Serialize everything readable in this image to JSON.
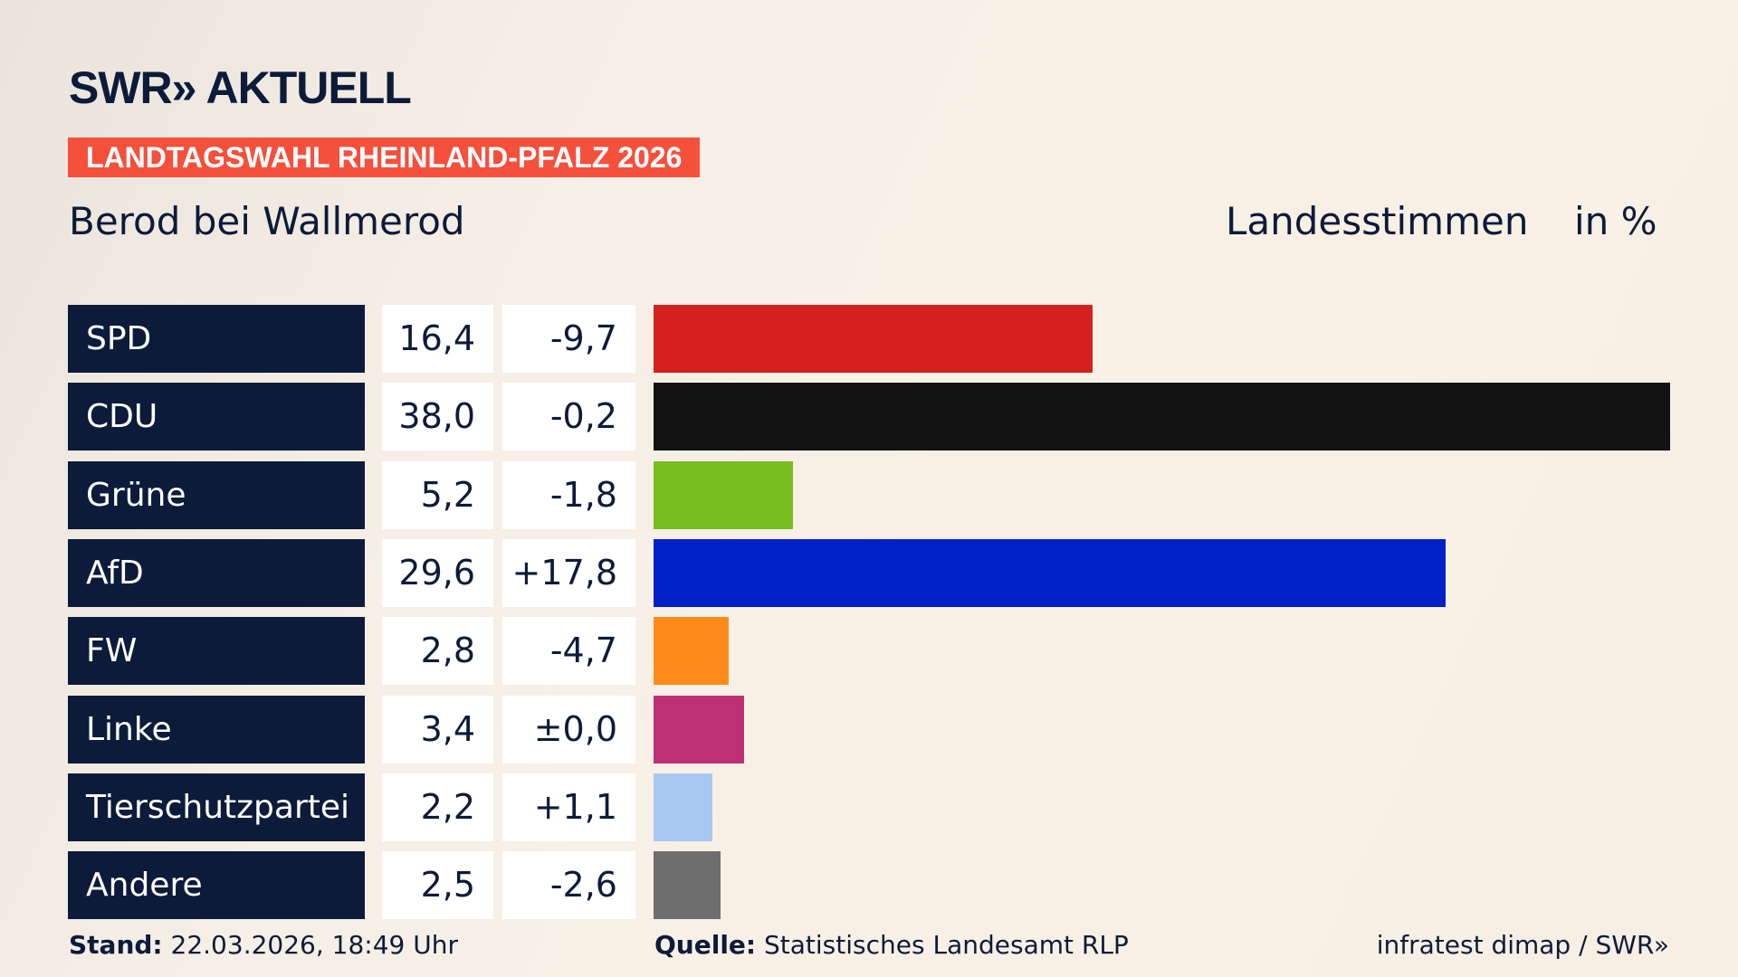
{
  "header": {
    "logo": "SWR» AKTUELL",
    "banner": "LANDTAGSWAHL RHEINLAND-PFALZ 2026",
    "place": "Berod bei Wallmerod",
    "vote_type": "Landesstimmen",
    "unit": "in %"
  },
  "chart_data": {
    "type": "bar",
    "orientation": "horizontal",
    "categories": [
      "SPD",
      "CDU",
      "Grüne",
      "AfD",
      "FW",
      "Linke",
      "Tierschutzpartei",
      "Andere"
    ],
    "values": [
      16.4,
      38.0,
      5.2,
      29.6,
      2.8,
      3.4,
      2.2,
      2.5
    ],
    "value_labels": [
      "16,4",
      "38,0",
      "5,2",
      "29,6",
      "2,8",
      "3,4",
      "2,2",
      "2,5"
    ],
    "diff_labels": [
      "-9,7",
      "-0,2",
      "-1,8",
      "+17,8",
      "-4,7",
      "±0,0",
      "+1,1",
      "-2,6"
    ],
    "colors": [
      "#d52020",
      "#121212",
      "#78be1e",
      "#0021c8",
      "#ff8c1a",
      "#be3075",
      "#a9c8f0",
      "#6e6e6e"
    ],
    "xlim": [
      0,
      38.0
    ]
  },
  "footer": {
    "stand_label": "Stand:",
    "stand_value": "22.03.2026, 18:49 Uhr",
    "source_label": "Quelle:",
    "source_value": "Statistisches Landesamt RLP",
    "credit": "infratest dimap / SWR»"
  }
}
